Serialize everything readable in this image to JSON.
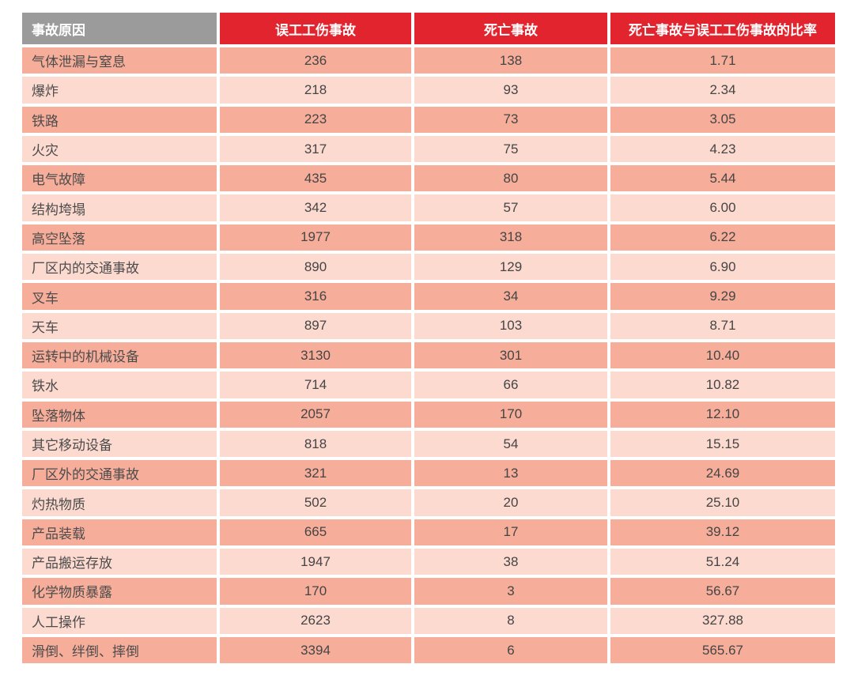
{
  "chart_data": {
    "type": "table",
    "title": "",
    "columns": [
      "事故原因",
      "误工工伤事故",
      "死亡事故",
      "死亡事故与误工工伤事故的比率"
    ],
    "rows": [
      {
        "cause": "气体泄漏与窒息",
        "lost_time_injuries": 236,
        "fatal_accidents": 138,
        "ratio": "1.71"
      },
      {
        "cause": "爆炸",
        "lost_time_injuries": 218,
        "fatal_accidents": 93,
        "ratio": "2.34"
      },
      {
        "cause": "铁路",
        "lost_time_injuries": 223,
        "fatal_accidents": 73,
        "ratio": "3.05"
      },
      {
        "cause": "火灾",
        "lost_time_injuries": 317,
        "fatal_accidents": 75,
        "ratio": "4.23"
      },
      {
        "cause": "电气故障",
        "lost_time_injuries": 435,
        "fatal_accidents": 80,
        "ratio": "5.44"
      },
      {
        "cause": "结构垮塌",
        "lost_time_injuries": 342,
        "fatal_accidents": 57,
        "ratio": "6.00"
      },
      {
        "cause": "高空坠落",
        "lost_time_injuries": 1977,
        "fatal_accidents": 318,
        "ratio": "6.22"
      },
      {
        "cause": "厂区内的交通事故",
        "lost_time_injuries": 890,
        "fatal_accidents": 129,
        "ratio": "6.90"
      },
      {
        "cause": "叉车",
        "lost_time_injuries": 316,
        "fatal_accidents": 34,
        "ratio": "9.29"
      },
      {
        "cause": "天车",
        "lost_time_injuries": 897,
        "fatal_accidents": 103,
        "ratio": "8.71"
      },
      {
        "cause": "运转中的机械设备",
        "lost_time_injuries": 3130,
        "fatal_accidents": 301,
        "ratio": "10.40"
      },
      {
        "cause": "铁水",
        "lost_time_injuries": 714,
        "fatal_accidents": 66,
        "ratio": "10.82"
      },
      {
        "cause": "坠落物体",
        "lost_time_injuries": 2057,
        "fatal_accidents": 170,
        "ratio": "12.10"
      },
      {
        "cause": "其它移动设备",
        "lost_time_injuries": 818,
        "fatal_accidents": 54,
        "ratio": "15.15"
      },
      {
        "cause": "厂区外的交通事故",
        "lost_time_injuries": 321,
        "fatal_accidents": 13,
        "ratio": "24.69"
      },
      {
        "cause": "灼热物质",
        "lost_time_injuries": 502,
        "fatal_accidents": 20,
        "ratio": "25.10"
      },
      {
        "cause": "产品装载",
        "lost_time_injuries": 665,
        "fatal_accidents": 17,
        "ratio": "39.12"
      },
      {
        "cause": "产品搬运存放",
        "lost_time_injuries": 1947,
        "fatal_accidents": 38,
        "ratio": "51.24"
      },
      {
        "cause": "化学物质暴露",
        "lost_time_injuries": 170,
        "fatal_accidents": 3,
        "ratio": "56.67"
      },
      {
        "cause": "人工操作",
        "lost_time_injuries": 2623,
        "fatal_accidents": 8,
        "ratio": "327.88"
      },
      {
        "cause": "滑倒、绊倒、摔倒",
        "lost_time_injuries": 3394,
        "fatal_accidents": 6,
        "ratio": "565.67"
      }
    ]
  },
  "colors": {
    "header_gray": "#9b9b9b",
    "header_red": "#e2242e",
    "row_dark": "#f6ad99",
    "row_light": "#fcdacf",
    "header_text": "#ffffff",
    "cell_text": "#454545"
  }
}
